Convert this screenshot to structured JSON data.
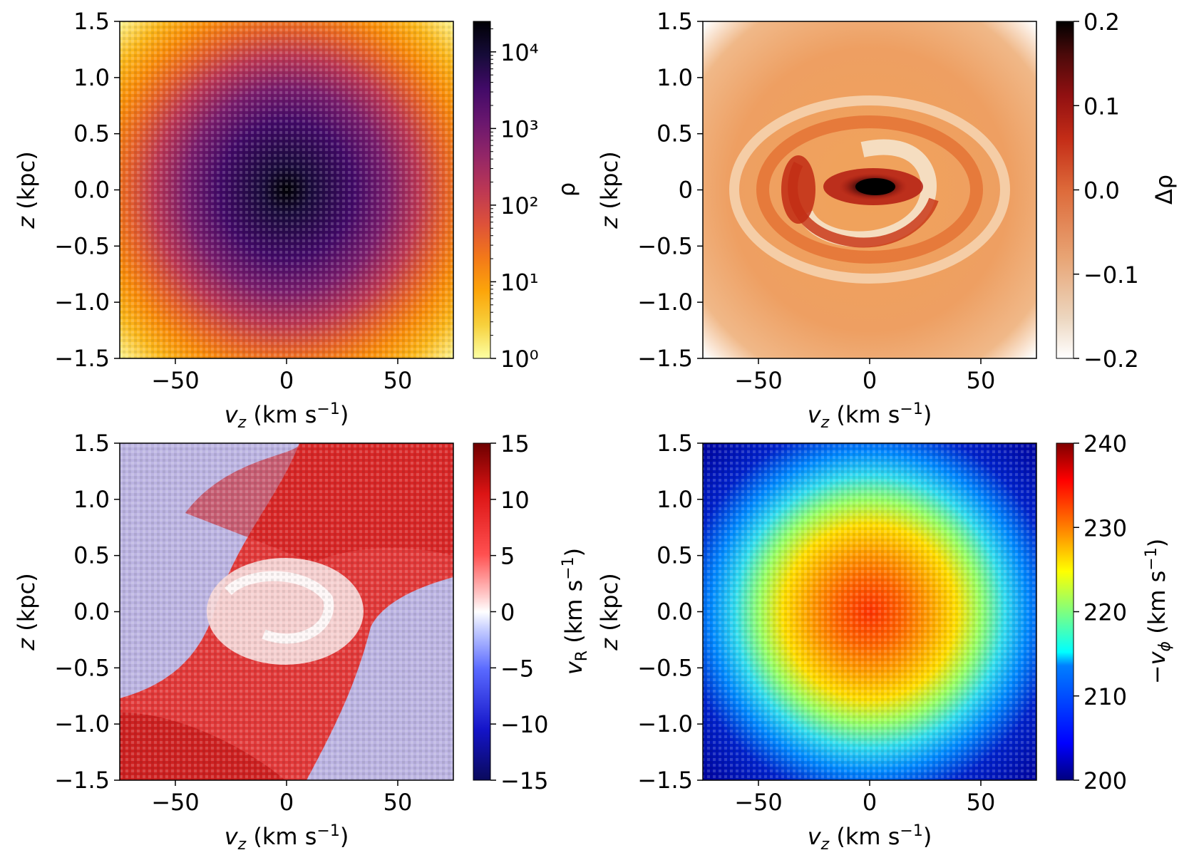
{
  "chart_data": [
    {
      "type": "heatmap",
      "panel": "top-left",
      "xlabel": "v_z (km s⁻¹)",
      "ylabel": "z (kpc)",
      "xlim": [
        -75,
        75
      ],
      "ylim": [
        -1.5,
        1.5
      ],
      "xticks": [
        -50,
        0,
        50
      ],
      "xtick_labels": [
        "−50",
        "0",
        "50"
      ],
      "yticks": [
        -1.5,
        -1.0,
        -0.5,
        0.0,
        0.5,
        1.0,
        1.5
      ],
      "ytick_labels": [
        "−1.5",
        "−1.0",
        "−0.5",
        "0.0",
        "0.5",
        "1.0",
        "1.5"
      ],
      "colorbar": {
        "label": "ρ",
        "scale": "log",
        "range": [
          1,
          25000
        ],
        "ticks": [
          1,
          10,
          100,
          1000,
          10000
        ],
        "tick_labels": [
          "10⁰",
          "10¹",
          "10²",
          "10³",
          "10⁴"
        ],
        "colormap": [
          "#fcffa4",
          "#f7d03c",
          "#fca50a",
          "#f37819",
          "#dd513a",
          "#bc3754",
          "#932667",
          "#6a176e",
          "#420a68",
          "#160b39",
          "#000004"
        ]
      },
      "description_values": {
        "peak_at": [
          0,
          0
        ],
        "peak_density": 25000,
        "edge_density": 1
      }
    },
    {
      "type": "heatmap",
      "panel": "top-right",
      "xlabel": "v_z (km s⁻¹)",
      "ylabel": "z (kpc)",
      "xlim": [
        -75,
        75
      ],
      "ylim": [
        -1.5,
        1.5
      ],
      "xticks": [
        -50,
        0,
        50
      ],
      "xtick_labels": [
        "−50",
        "0",
        "50"
      ],
      "yticks": [
        -1.5,
        -1.0,
        -0.5,
        0.0,
        0.5,
        1.0,
        1.5
      ],
      "ytick_labels": [
        "−1.5",
        "−1.0",
        "−0.5",
        "0",
        "0.5",
        "1.0",
        "1.5"
      ],
      "colorbar": {
        "label": "Δρ",
        "scale": "linear",
        "range": [
          -0.2,
          0.2
        ],
        "ticks": [
          -0.2,
          -0.1,
          0.0,
          0.1,
          0.2
        ],
        "tick_labels": [
          "−0.2",
          "−0.1",
          "0.0",
          "0.1",
          "0.2"
        ],
        "colormap": [
          "#ffffff",
          "#ecd6bf",
          "#e8a474",
          "#dd6a3a",
          "#c42d17",
          "#911011",
          "#4c0a0a",
          "#000000"
        ]
      },
      "description_values": {
        "feature": "phase spiral",
        "center_value": 0.2,
        "background_value": -0.07
      }
    },
    {
      "type": "heatmap",
      "panel": "bottom-left",
      "xlabel": "v_z (km s⁻¹)",
      "ylabel": "z (kpc)",
      "xlim": [
        -75,
        75
      ],
      "ylim": [
        -1.5,
        1.5
      ],
      "xticks": [
        -50,
        0,
        50
      ],
      "xtick_labels": [
        "−50",
        "0",
        "50"
      ],
      "yticks": [
        -1.5,
        -1.0,
        -0.5,
        0.0,
        0.5,
        1.0,
        1.5
      ],
      "ytick_labels": [
        "−1.5",
        "−1.0",
        "−0.5",
        "0.0",
        "0.5",
        "1.0",
        "1.5"
      ],
      "colorbar": {
        "label": "v_R (km s⁻¹)",
        "scale": "linear",
        "range": [
          -15,
          15
        ],
        "ticks": [
          -15,
          -10,
          -5,
          0,
          5,
          10,
          15
        ],
        "tick_labels": [
          "−15",
          "−10",
          "−5",
          "0",
          "5",
          "10",
          "15"
        ],
        "colormap": [
          "#0a0a5c",
          "#1414c8",
          "#5a6aff",
          "#c8d0ff",
          "#ffffff",
          "#ffc8c8",
          "#ff5050",
          "#dc1414",
          "#6e0000"
        ]
      },
      "description_values": {
        "feature": "phase spiral",
        "range_shown": [
          -15,
          15
        ]
      }
    },
    {
      "type": "heatmap",
      "panel": "bottom-right",
      "xlabel": "v_z (km s⁻¹)",
      "ylabel": "z (kpc)",
      "xlim": [
        -75,
        75
      ],
      "ylim": [
        -1.5,
        1.5
      ],
      "xticks": [
        -50,
        0,
        50
      ],
      "xtick_labels": [
        "−50",
        "0",
        "50"
      ],
      "yticks": [
        -1.5,
        -1.0,
        -0.5,
        0.0,
        0.5,
        1.0,
        1.5
      ],
      "ytick_labels": [
        "−1.5",
        "−1.0",
        "−0.5",
        "0.0",
        "0.5",
        "1.0",
        "1.5"
      ],
      "colorbar": {
        "label": "−v_φ (km s⁻¹)",
        "scale": "linear",
        "range": [
          200,
          240
        ],
        "ticks": [
          200,
          210,
          220,
          230,
          240
        ],
        "tick_labels": [
          "200",
          "210",
          "220",
          "230",
          "240"
        ],
        "colormap": [
          "#00007f",
          "#0000ff",
          "#007fff",
          "#00ffff",
          "#7fff7f",
          "#ffff00",
          "#ff7f00",
          "#ff0000",
          "#7f0000"
        ]
      },
      "description_values": {
        "center_value": 235,
        "edge_value": 205
      }
    }
  ],
  "labels": {
    "xlabel_main": "v",
    "xlabel_sub": "z",
    "xlabel_unit": " (km s",
    "xlabel_exp": "−1",
    "xlabel_close": ")",
    "ylabel_main": "z",
    "ylabel_unit": " (kpc)",
    "cb1_label": "ρ",
    "cb2_label": "Δρ",
    "cb3_main": "v",
    "cb3_sub": "R",
    "cb3_unit": " (km s",
    "cb3_exp": "−1",
    "cb3_close": ")",
    "cb4_main": "−v",
    "cb4_sub": "ϕ",
    "cb4_unit": " (km s",
    "cb4_exp": "−1",
    "cb4_close": ")"
  }
}
